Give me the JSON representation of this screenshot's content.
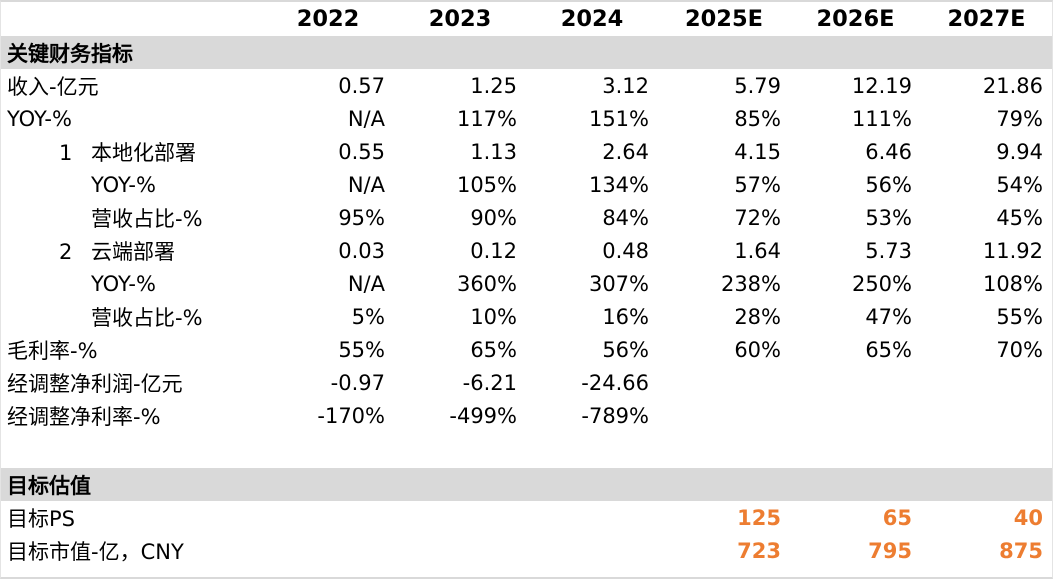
{
  "table": {
    "columns": [
      "",
      "2022",
      "2023",
      "2024",
      "2025E",
      "2026E",
      "2027E"
    ],
    "sections": [
      {
        "title": "关键财务指标",
        "spacer_before": false,
        "rows": [
          {
            "label": "收入-亿元",
            "indent": 0,
            "values": [
              "0.57",
              "1.25",
              "3.12",
              "5.79",
              "12.19",
              "21.86"
            ]
          },
          {
            "label": "YOY-%",
            "indent": 0,
            "values": [
              "N/A",
              "117%",
              "151%",
              "85%",
              "111%",
              "79%"
            ]
          },
          {
            "label": "本地化部署",
            "num": "1",
            "indent": 1,
            "values": [
              "0.55",
              "1.13",
              "2.64",
              "4.15",
              "6.46",
              "9.94"
            ]
          },
          {
            "label": "YOY-%",
            "indent": 2,
            "values": [
              "N/A",
              "105%",
              "134%",
              "57%",
              "56%",
              "54%"
            ]
          },
          {
            "label": "营收占比-%",
            "indent": 2,
            "values": [
              "95%",
              "90%",
              "84%",
              "72%",
              "53%",
              "45%"
            ]
          },
          {
            "label": "云端部署",
            "num": "2",
            "indent": 1,
            "values": [
              "0.03",
              "0.12",
              "0.48",
              "1.64",
              "5.73",
              "11.92"
            ]
          },
          {
            "label": "YOY-%",
            "indent": 2,
            "values": [
              "N/A",
              "360%",
              "307%",
              "238%",
              "250%",
              "108%"
            ]
          },
          {
            "label": "营收占比-%",
            "indent": 2,
            "values": [
              "5%",
              "10%",
              "16%",
              "28%",
              "47%",
              "55%"
            ]
          },
          {
            "label": "毛利率-%",
            "indent": 0,
            "values": [
              "55%",
              "65%",
              "56%",
              "60%",
              "65%",
              "70%"
            ]
          },
          {
            "label": "经调整净利润-亿元",
            "indent": 0,
            "values": [
              "-0.97",
              "-6.21",
              "-24.66",
              "",
              "",
              ""
            ]
          },
          {
            "label": "经调整净利率-%",
            "indent": 0,
            "values": [
              "-170%",
              "-499%",
              "-789%",
              "",
              "",
              ""
            ]
          }
        ]
      },
      {
        "title": "目标估值",
        "spacer_before": true,
        "rows": [
          {
            "label": "目标PS",
            "indent": 0,
            "highlight": true,
            "values": [
              "",
              "",
              "",
              "125",
              "65",
              "40"
            ]
          },
          {
            "label": "目标市值-亿，CNY",
            "indent": 0,
            "highlight": true,
            "values": [
              "",
              "",
              "",
              "723",
              "795",
              "875"
            ]
          }
        ]
      }
    ]
  },
  "colors": {
    "band_background": "#d9d9d9",
    "accent_orange": "#ed7d31",
    "text": "#000000",
    "border": "#d9d9d9"
  }
}
